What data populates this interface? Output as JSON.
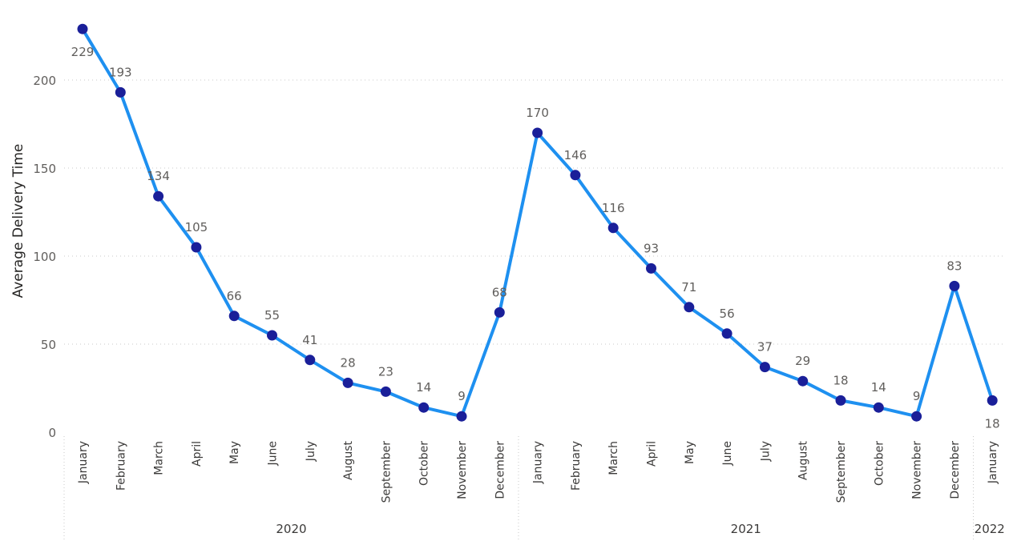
{
  "chart_data": {
    "type": "line",
    "ylabel": "Average Delivery Time",
    "xlabel": "",
    "ylim": [
      0,
      240
    ],
    "yticks": [
      0,
      50,
      100,
      150,
      200
    ],
    "grid": true,
    "line_color": "#1e90f0",
    "marker_color": "#1a1f99",
    "categories": [
      {
        "month": "January",
        "year": "2020"
      },
      {
        "month": "February",
        "year": "2020"
      },
      {
        "month": "March",
        "year": "2020"
      },
      {
        "month": "April",
        "year": "2020"
      },
      {
        "month": "May",
        "year": "2020"
      },
      {
        "month": "June",
        "year": "2020"
      },
      {
        "month": "July",
        "year": "2020"
      },
      {
        "month": "August",
        "year": "2020"
      },
      {
        "month": "September",
        "year": "2020"
      },
      {
        "month": "October",
        "year": "2020"
      },
      {
        "month": "November",
        "year": "2020"
      },
      {
        "month": "December",
        "year": "2020"
      },
      {
        "month": "January",
        "year": "2021"
      },
      {
        "month": "February",
        "year": "2021"
      },
      {
        "month": "March",
        "year": "2021"
      },
      {
        "month": "April",
        "year": "2021"
      },
      {
        "month": "May",
        "year": "2021"
      },
      {
        "month": "June",
        "year": "2021"
      },
      {
        "month": "July",
        "year": "2021"
      },
      {
        "month": "August",
        "year": "2021"
      },
      {
        "month": "September",
        "year": "2021"
      },
      {
        "month": "October",
        "year": "2021"
      },
      {
        "month": "November",
        "year": "2021"
      },
      {
        "month": "December",
        "year": "2021"
      },
      {
        "month": "January",
        "year": "2022"
      }
    ],
    "years": [
      "2020",
      "2021",
      "2022"
    ],
    "values": [
      229,
      193,
      134,
      105,
      66,
      55,
      41,
      28,
      23,
      14,
      9,
      68,
      170,
      146,
      116,
      93,
      71,
      56,
      37,
      29,
      18,
      14,
      9,
      83,
      18
    ]
  }
}
